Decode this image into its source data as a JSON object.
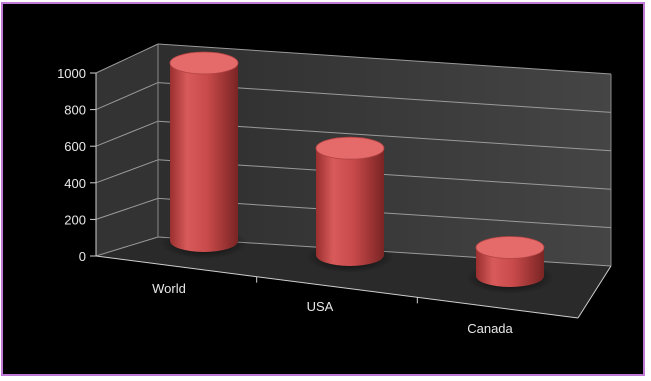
{
  "chart_data": {
    "type": "bar",
    "style": "3d-cylinder",
    "categories": [
      "World",
      "USA",
      "Canada"
    ],
    "values": [
      1000,
      600,
      160
    ],
    "ylim": [
      0,
      1000
    ],
    "yticks": [
      0,
      200,
      400,
      600,
      800,
      1000
    ],
    "ytick_labels": [
      "0",
      "200",
      "400",
      "600",
      "800",
      "1000"
    ],
    "title": "",
    "xlabel": "",
    "ylabel": "",
    "legend": "none",
    "grid": true,
    "colors": {
      "bar": "#c94a4a",
      "bar_top": "#e56a6a",
      "wall": "#3a3a3a",
      "floor": "#2a2a2a",
      "gridline": "#9a9a9a",
      "background": "#000000",
      "frame_border": "#c07ad6",
      "text": "#e8e8e8"
    }
  }
}
